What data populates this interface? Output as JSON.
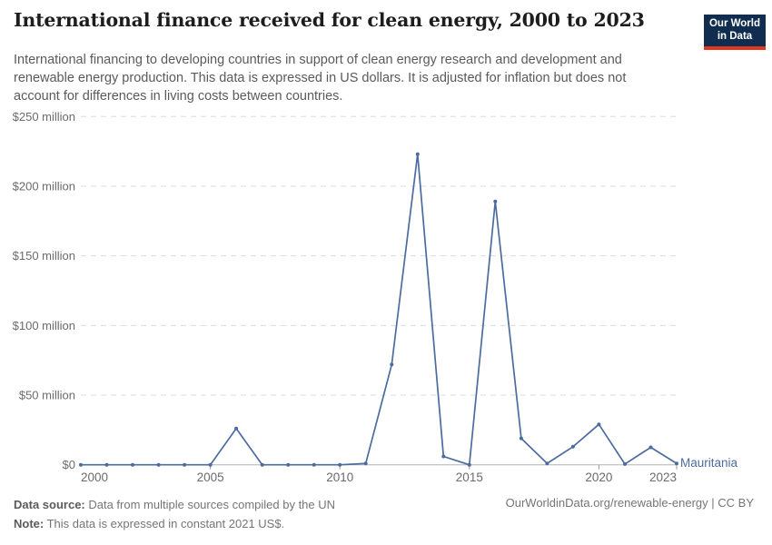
{
  "header": {
    "title": "International finance received for clean energy, 2000 to 2023",
    "subtitle": "International financing to developing countries in support of clean energy research and development and renewable energy production. This data is expressed in US dollars. It is adjusted for inflation but does not account for differences in living costs between countries.",
    "logo": {
      "line1": "Our World",
      "line2": "in Data",
      "bg_color": "#102d50",
      "accent_color": "#e0381c"
    }
  },
  "chart_data": {
    "type": "line",
    "title": "International finance received for clean energy, 2000 to 2023",
    "x": [
      2000,
      2001,
      2002,
      2003,
      2004,
      2005,
      2006,
      2007,
      2008,
      2009,
      2010,
      2011,
      2012,
      2013,
      2014,
      2015,
      2016,
      2017,
      2018,
      2019,
      2020,
      2021,
      2022,
      2023
    ],
    "series": [
      {
        "name": "Mauritania",
        "color": "#4c6b9f",
        "values": [
          0,
          0,
          0,
          0,
          0,
          0,
          26,
          0,
          0,
          0,
          0,
          1,
          72,
          223,
          6,
          0,
          189,
          19,
          1,
          13,
          29,
          0.5,
          12.5,
          1
        ]
      }
    ],
    "unit": "US$ million, constant 2021",
    "ylim": [
      0,
      250
    ],
    "ytick_values": [
      0,
      50,
      100,
      150,
      200,
      250
    ],
    "ytick_labels": [
      "$0",
      "$50 million",
      "$100 million",
      "$150 million",
      "$200 million",
      "$250 million"
    ],
    "xtick_values": [
      2000,
      2005,
      2010,
      2015,
      2020,
      2023
    ],
    "grid": "horizontal-dashed",
    "legend_position": "end-of-line",
    "colors": {
      "gridline": "#dcdcdc",
      "axis": "#b3b3b3",
      "tick": "#999999",
      "axis_text": "#6b6b6b"
    }
  },
  "footer": {
    "source_label": "Data source:",
    "source_text": " Data from multiple sources compiled by the UN",
    "note_label": "Note:",
    "note_text": " This data is expressed in constant 2021 US$.",
    "credit": "OurWorldinData.org/renewable-energy | CC BY"
  }
}
